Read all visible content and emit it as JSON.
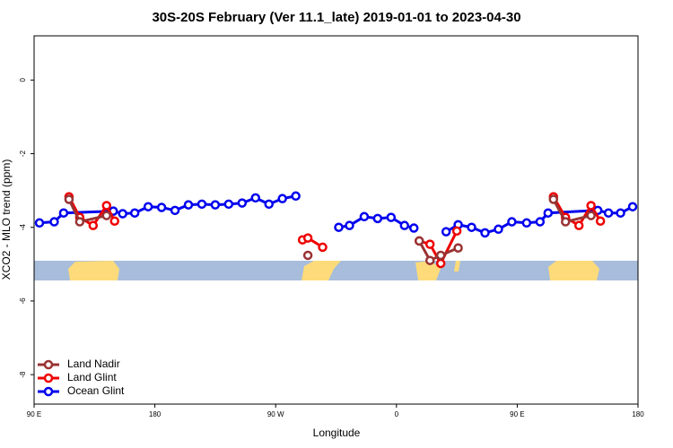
{
  "chart_data": {
    "type": "line",
    "title": "30S-20S February (Ver 11.1_late)   2019-01-01 to 2023-04-30",
    "xlabel": "Longitude",
    "ylabel": "XCO2 - MLO trend (ppm)",
    "xlim": [
      90,
      540
    ],
    "ylim": [
      -8.8,
      1.2
    ],
    "xticks": [
      {
        "value": 90,
        "label": "90 E"
      },
      180,
      {
        "value": 270,
        "label": "90 W"
      },
      {
        "value": 360,
        "label": "0"
      },
      {
        "value": 450,
        "label": "90 E"
      },
      {
        "value": 540,
        "label": "180"
      }
    ],
    "yticks": [
      0,
      -2,
      -4,
      -6,
      -8
    ],
    "legend": "lower left",
    "series": [
      {
        "name": "Land Nadir",
        "color": "#993333",
        "x": [
          116,
          124,
          144,
          null,
          294,
          null,
          377,
          385,
          393,
          406,
          null,
          477,
          486,
          505
        ],
        "values": [
          -3.24,
          -3.85,
          -3.68,
          null,
          -4.76,
          null,
          -4.37,
          -4.9,
          -4.76,
          -4.56,
          null,
          -3.24,
          -3.85,
          -3.68
        ]
      },
      {
        "name": "Land Glint",
        "color": "#ee0000",
        "x": [
          116,
          124,
          134,
          144,
          150,
          null,
          290,
          294,
          305,
          null,
          377,
          385,
          393,
          405,
          null,
          477,
          486,
          496,
          505,
          512
        ],
        "values": [
          -3.17,
          -3.73,
          -3.95,
          -3.41,
          -3.83,
          null,
          -4.34,
          -4.29,
          -4.54,
          null,
          -4.37,
          -4.46,
          -4.98,
          -4.1,
          null,
          -3.17,
          -3.73,
          -3.95,
          -3.41,
          -3.83
        ]
      },
      {
        "name": "Ocean Glint",
        "color": "#0000ee",
        "x": [
          94,
          105,
          112,
          149,
          156,
          165,
          175,
          185,
          195,
          205,
          215,
          225,
          235,
          245,
          255,
          265,
          275,
          285,
          null,
          317,
          325,
          336,
          346,
          356,
          366,
          373,
          null,
          397,
          406,
          416,
          426,
          436,
          446,
          457,
          467,
          473,
          510,
          518,
          527,
          536
        ],
        "values": [
          -3.88,
          -3.85,
          -3.61,
          -3.56,
          -3.63,
          -3.61,
          -3.44,
          -3.46,
          -3.54,
          -3.39,
          -3.37,
          -3.39,
          -3.37,
          -3.34,
          -3.2,
          -3.37,
          -3.22,
          -3.15,
          null,
          -4.0,
          -3.95,
          -3.71,
          -3.76,
          -3.73,
          -3.95,
          -4.02,
          null,
          -4.12,
          -3.93,
          -4.0,
          -4.15,
          -4.05,
          -3.85,
          -3.88,
          -3.85,
          -3.61,
          -3.54,
          -3.61,
          -3.61,
          -3.44
        ]
      }
    ]
  }
}
